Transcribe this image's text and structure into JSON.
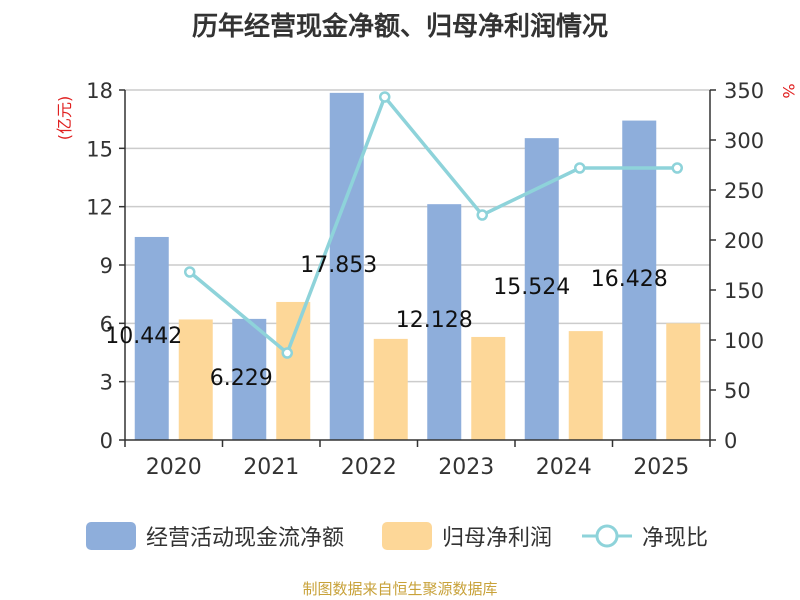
{
  "chart_data": {
    "type": "bar+line",
    "title": "历年经营现金净额、归母净利润情况",
    "categories": [
      "2020",
      "2021",
      "2022",
      "2023",
      "2024",
      "2025"
    ],
    "series": [
      {
        "name": "经营活动现金流净额",
        "type": "bar",
        "axis": "left",
        "values": [
          10.442,
          6.229,
          17.853,
          12.128,
          15.524,
          16.428
        ],
        "labels": [
          "10.442",
          "6.229",
          "17.853",
          "12.128",
          "15.524",
          "16.428"
        ],
        "color": "#8eaedb"
      },
      {
        "name": "归母净利润",
        "type": "bar",
        "axis": "left",
        "values": [
          6.2,
          7.1,
          5.2,
          5.3,
          5.6,
          6.0
        ],
        "color": "#fdd798"
      },
      {
        "name": "净现比",
        "type": "line",
        "axis": "right",
        "values": [
          168,
          87,
          343,
          225,
          272,
          272
        ],
        "color": "#8ed3da"
      }
    ],
    "y_left": {
      "label": "(亿元)",
      "min": 0,
      "max": 18,
      "ticks": [
        "0",
        "3",
        "6",
        "9",
        "12",
        "15",
        "18"
      ],
      "color": "#e02020"
    },
    "y_right": {
      "label": "%",
      "min": 0,
      "max": 350,
      "ticks": [
        "0",
        "50",
        "100",
        "150",
        "200",
        "250",
        "300",
        "350"
      ],
      "color": "#e02020"
    },
    "grid": true,
    "legend": "bottom"
  },
  "source": "制图数据来自恒生聚源数据库"
}
